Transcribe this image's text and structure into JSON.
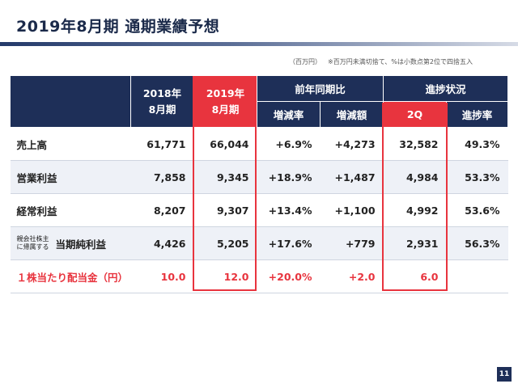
{
  "title": "2019年8月期 通期業績予想",
  "notes": {
    "unit": "（百万円）",
    "rounding": "※百万円未満切捨て、%は小数点第2位で四捨五入"
  },
  "header": {
    "fy2018": [
      "2018年",
      "8月期"
    ],
    "fy2019": [
      "2019年",
      "8月期"
    ],
    "yoy_group": "前年同期比",
    "progress_group": "進捗状況",
    "yoy_rate": "増減率",
    "yoy_amount": "増減額",
    "q2": "2Q",
    "progress_rate": "進捗率"
  },
  "rows": [
    {
      "label": "売上高",
      "fy2018": "61,771",
      "fy2019": "66,044",
      "rate": "+6.9%",
      "amount": "+4,273",
      "q2": "32,582",
      "progress": "49.3%"
    },
    {
      "label": "営業利益",
      "fy2018": "7,858",
      "fy2019": "9,345",
      "rate": "+18.9%",
      "amount": "+1,487",
      "q2": "4,984",
      "progress": "53.3%"
    },
    {
      "label": "経常利益",
      "fy2018": "8,207",
      "fy2019": "9,307",
      "rate": "+13.4%",
      "amount": "+1,100",
      "q2": "4,992",
      "progress": "53.6%"
    },
    {
      "label_small": [
        "親会社株主",
        "に帰属する"
      ],
      "label": "当期純利益",
      "fy2018": "4,426",
      "fy2019": "5,205",
      "rate": "+17.6%",
      "amount": "+779",
      "q2": "2,931",
      "progress": "56.3%"
    },
    {
      "label": "１株当たり配当金（円）",
      "fy2018": "10.0",
      "fy2019": "12.0",
      "rate": "+20.0%",
      "amount": "+2.0",
      "q2": "6.0",
      "progress": ""
    }
  ],
  "page_number": "11",
  "colors": {
    "navy": "#1e2f58",
    "red": "#e8343e",
    "stripe": "#eef1f7"
  }
}
